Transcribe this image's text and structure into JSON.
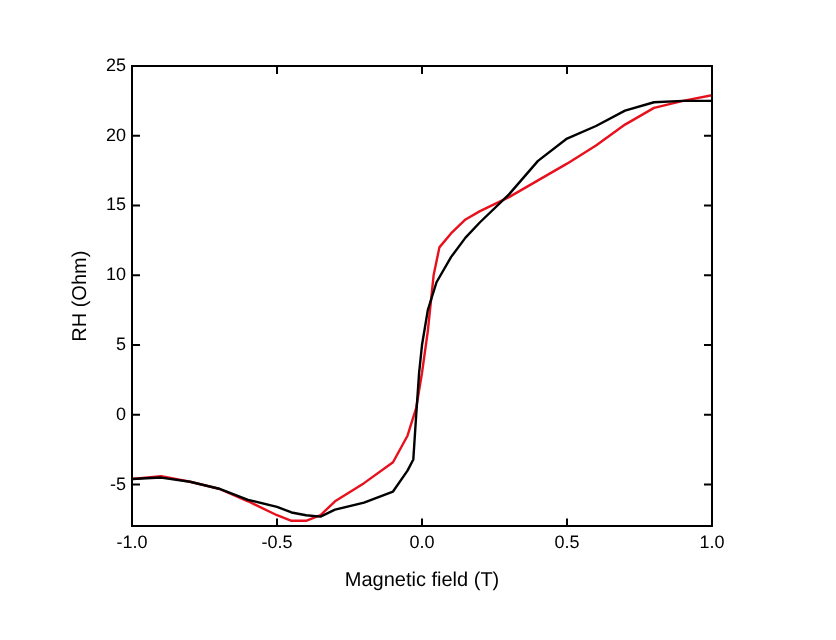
{
  "chart_data": {
    "type": "line",
    "xlabel": "Magnetic field (T)",
    "ylabel": "RH (Ohm)",
    "xlim": [
      -1,
      1
    ],
    "ylim": [
      -8,
      25
    ],
    "xticks": [
      {
        "value": -1,
        "label": "-1.0"
      },
      {
        "value": -0.5,
        "label": "-0.5"
      },
      {
        "value": 0,
        "label": "0.0"
      },
      {
        "value": 0.5,
        "label": "0.5"
      },
      {
        "value": 1,
        "label": "1.0"
      }
    ],
    "yticks": [
      -5,
      0,
      5,
      10,
      15,
      20,
      25
    ],
    "grid": false,
    "legend": false,
    "marker": "none",
    "line_style": "solid",
    "series": [
      {
        "color": "#000000",
        "x": [
          -1,
          -0.9,
          -0.8,
          -0.7,
          -0.6,
          -0.5,
          -0.45,
          -0.4,
          -0.35,
          -0.3,
          -0.2,
          -0.1,
          -0.05,
          -0.03,
          -0.02,
          -0.01,
          0,
          0.02,
          0.05,
          0.1,
          0.15,
          0.2,
          0.3,
          0.35,
          0.4,
          0.5,
          0.6,
          0.7,
          0.8,
          0.9,
          1
        ],
        "values": [
          -4.6,
          -4.5,
          -4.8,
          -5.3,
          -6.1,
          -6.6,
          -7,
          -7.2,
          -7.3,
          -6.8,
          -6.3,
          -5.5,
          -4,
          -3.2,
          0,
          3,
          5,
          7.5,
          9.5,
          11.3,
          12.7,
          13.8,
          15.8,
          17,
          18.2,
          19.8,
          20.7,
          21.8,
          22.4,
          22.5,
          22.5
        ]
      },
      {
        "color": "#e8101c",
        "x": [
          -1,
          -0.9,
          -0.8,
          -0.7,
          -0.6,
          -0.5,
          -0.45,
          -0.4,
          -0.35,
          -0.3,
          -0.2,
          -0.1,
          -0.05,
          -0.02,
          0,
          0.02,
          0.04,
          0.06,
          0.1,
          0.15,
          0.2,
          0.3,
          0.4,
          0.5,
          0.6,
          0.7,
          0.8,
          0.9,
          1
        ],
        "values": [
          -4.6,
          -4.4,
          -4.8,
          -5.3,
          -6.2,
          -7.2,
          -7.6,
          -7.6,
          -7.2,
          -6.2,
          -4.9,
          -3.4,
          -1.5,
          0.5,
          3,
          6,
          10,
          12,
          13,
          14,
          14.6,
          15.6,
          16.8,
          18,
          19.3,
          20.8,
          22,
          22.5,
          22.9
        ]
      }
    ]
  }
}
